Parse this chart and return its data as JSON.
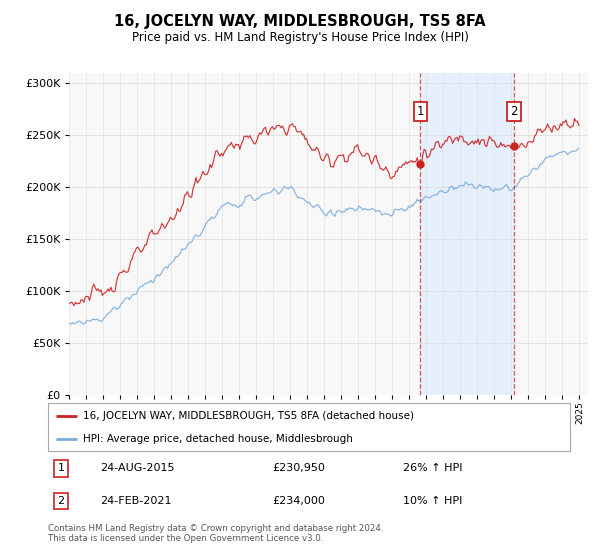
{
  "title": "16, JOCELYN WAY, MIDDLESBROUGH, TS5 8FA",
  "subtitle": "Price paid vs. HM Land Registry's House Price Index (HPI)",
  "legend_line1": "16, JOCELYN WAY, MIDDLESBROUGH, TS5 8FA (detached house)",
  "legend_line2": "HPI: Average price, detached house, Middlesbrough",
  "annotation1_label": "1",
  "annotation1_date": "24-AUG-2015",
  "annotation1_price": "£230,950",
  "annotation1_hpi": "26% ↑ HPI",
  "annotation2_label": "2",
  "annotation2_date": "24-FEB-2021",
  "annotation2_price": "£234,000",
  "annotation2_hpi": "10% ↑ HPI",
  "footer": "Contains HM Land Registry data © Crown copyright and database right 2024.\nThis data is licensed under the Open Government Licence v3.0.",
  "red_line_color": "#cc2222",
  "blue_line_color": "#7aace0",
  "shade_color": "#ddeeff",
  "marker1_x_year": 2015.65,
  "marker2_x_year": 2021.15,
  "ylim_min": 0,
  "ylim_max": 310000,
  "xmin": 1995,
  "xmax": 2025.5,
  "bg_color": "#ffffff",
  "plot_bg_color": "#f8f8f8",
  "grid_color": "#dddddd"
}
